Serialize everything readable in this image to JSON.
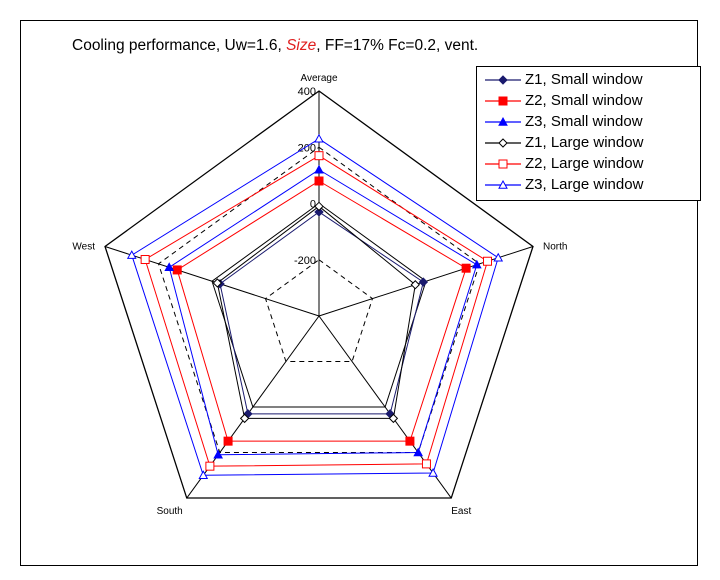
{
  "chart_data": {
    "type": "radar",
    "title_parts": [
      {
        "text": "Cooling performance, Uw=1.6, ",
        "color": "#000000",
        "italic": false
      },
      {
        "text": "Size",
        "color": "#e02020",
        "italic": true
      },
      {
        "text": ", FF=17% Fc=0.2, vent.",
        "color": "#000000",
        "italic": false
      }
    ],
    "axes": [
      "Average",
      "North",
      "East",
      "South",
      "West"
    ],
    "rlim": [
      -400,
      400
    ],
    "ticks": [
      400,
      200,
      0,
      -200
    ],
    "tick_labels": [
      "400",
      "200",
      "0",
      "-200"
    ],
    "series": [
      {
        "name": "Z1, Small window",
        "color": "#1a1a6e",
        "marker": "diamond",
        "filled": true,
        "values": [
          -30,
          -10,
          30,
          30,
          -30
        ]
      },
      {
        "name": "Z2, Small window",
        "color": "#ff0000",
        "marker": "square",
        "filled": true,
        "values": [
          80,
          150,
          150,
          150,
          130
        ]
      },
      {
        "name": "Z3, Small window",
        "color": "#0000ff",
        "marker": "triangle",
        "filled": true,
        "values": [
          120,
          190,
          200,
          210,
          160
        ]
      },
      {
        "name": "Z1, Large window",
        "color": "#000000",
        "marker": "diamond",
        "filled": false,
        "values": [
          -10,
          -40,
          50,
          50,
          -20
        ]
      },
      {
        "name": "Z2, Large window",
        "color": "#ff0000",
        "marker": "square",
        "filled": false,
        "values": [
          170,
          230,
          250,
          260,
          250
        ]
      },
      {
        "name": "Z3, Large window",
        "color": "#0000ff",
        "marker": "triangle",
        "filled": false,
        "values": [
          230,
          270,
          290,
          300,
          300
        ]
      }
    ]
  }
}
